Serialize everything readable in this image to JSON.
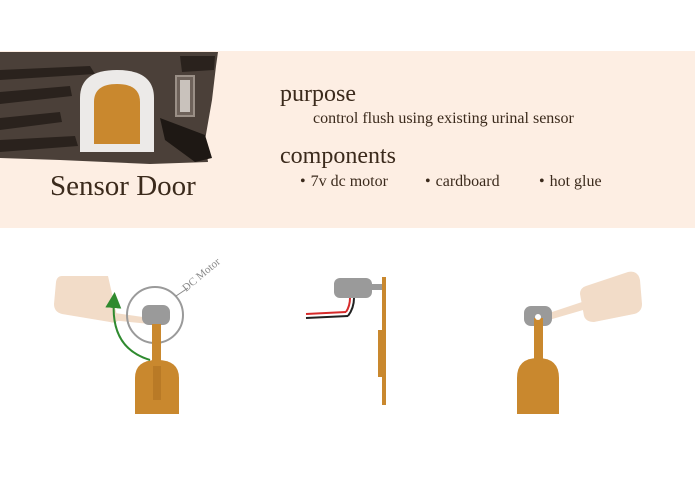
{
  "header": {
    "title": "Sensor Door",
    "purpose_heading": "purpose",
    "purpose_text": "control flush using existing urinal sensor",
    "components_heading": "components",
    "components": [
      "7v dc motor",
      "cardboard",
      "hot glue"
    ]
  },
  "diagram": {
    "motor_label": "DC Motor"
  },
  "colors": {
    "banner": "#fdeee3",
    "door": "#c9882e",
    "arm": "#f2dcc8",
    "motor": "#9a9a9a",
    "arrow": "#2f8a2f",
    "text": "#3b2a1c"
  }
}
